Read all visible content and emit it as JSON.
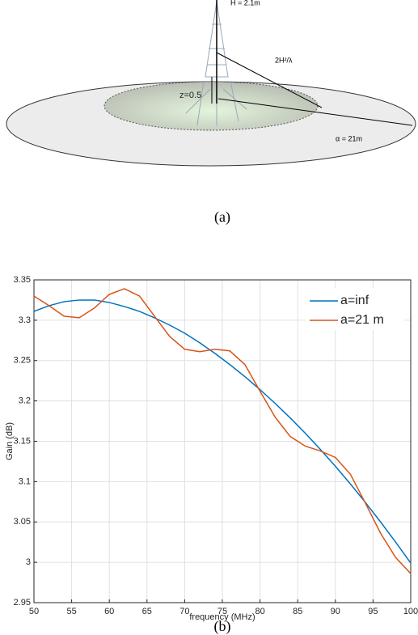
{
  "diagram": {
    "labels": [
      "H = 2.1m",
      "2H²/λ",
      "z=0.5",
      "α = 21m"
    ]
  },
  "captions": [
    "(a)",
    "(b)"
  ],
  "chart_data": {
    "type": "line",
    "x_label": "frequency (MHz)",
    "y_label": "Gain (dB)",
    "x": [
      50,
      52,
      54,
      56,
      58,
      60,
      62,
      64,
      66,
      68,
      70,
      72,
      74,
      76,
      78,
      80,
      82,
      84,
      86,
      88,
      90,
      92,
      94,
      96,
      98,
      100
    ],
    "series": [
      {
        "name": "a=inf",
        "color": "#0072bd",
        "values": [
          3.311,
          3.318,
          3.323,
          3.325,
          3.325,
          3.322,
          3.317,
          3.311,
          3.303,
          3.294,
          3.284,
          3.272,
          3.259,
          3.245,
          3.23,
          3.214,
          3.197,
          3.179,
          3.16,
          3.14,
          3.119,
          3.097,
          3.074,
          3.05,
          3.025,
          2.999
        ]
      },
      {
        "name": "a=21 m",
        "color": "#d95319",
        "values": [
          3.33,
          3.318,
          3.305,
          3.303,
          3.315,
          3.332,
          3.339,
          3.33,
          3.305,
          3.28,
          3.264,
          3.261,
          3.264,
          3.262,
          3.245,
          3.212,
          3.18,
          3.156,
          3.144,
          3.138,
          3.13,
          3.109,
          3.073,
          3.036,
          3.006,
          2.986
        ]
      }
    ],
    "xlim": [
      50,
      100
    ],
    "xticks": [
      50,
      55,
      60,
      65,
      70,
      75,
      80,
      85,
      90,
      95,
      100
    ],
    "ylim": [
      2.95,
      3.35
    ],
    "yticks": [
      2.95,
      3,
      3.05,
      3.1,
      3.15,
      3.2,
      3.25,
      3.3,
      3.35
    ],
    "grid": true,
    "legend": "top-right"
  }
}
